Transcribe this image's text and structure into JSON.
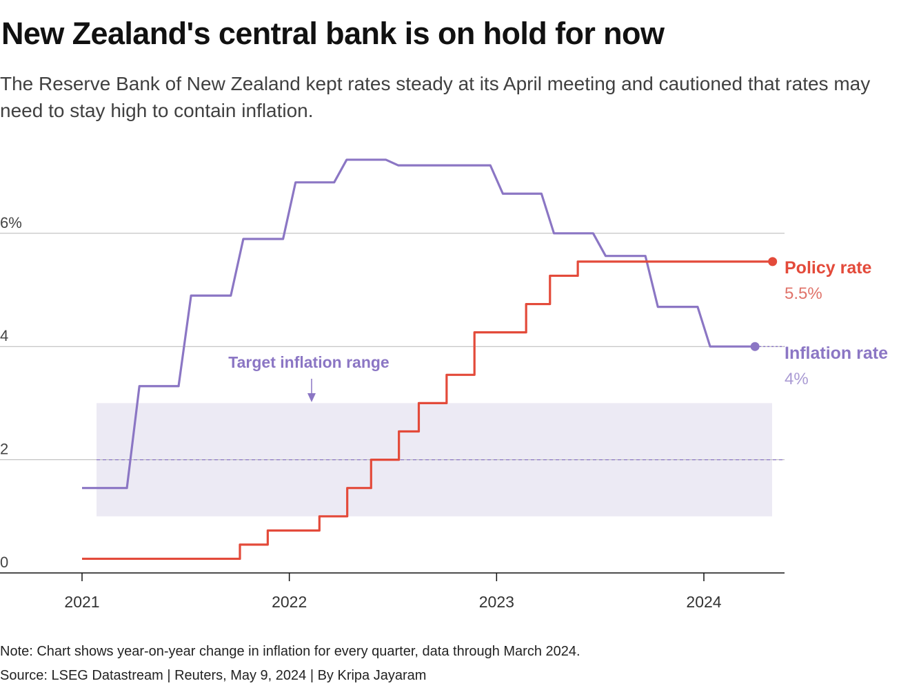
{
  "title": "New Zealand's central bank is on hold for now",
  "subtitle": "The Reserve Bank of New Zealand kept rates steady at its April meeting and cautioned that rates may need to stay high to contain inflation.",
  "note": "Note: Chart shows year-on-year change in inflation for every quarter, data through March 2024.",
  "source": "Source: LSEG Datastream | Reuters, May 9, 2024 | By Kripa Jayaram",
  "colors": {
    "policy": "#e34a3a",
    "inflation": "#8b76c4",
    "band": "#eceaf4",
    "grid": "#b5b5b5",
    "text": "#333333"
  },
  "chart_data": {
    "type": "line",
    "x_ticks": [
      "2021",
      "2022",
      "2023",
      "2024"
    ],
    "y_ticks": [
      {
        "value": 0,
        "label": "0"
      },
      {
        "value": 2,
        "label": "2"
      },
      {
        "value": 4,
        "label": "4"
      },
      {
        "value": 6,
        "label": "6%"
      }
    ],
    "ylim": [
      0,
      7.4
    ],
    "xlim": [
      "2020-09-01",
      "2024-06-15"
    ],
    "target_band": {
      "low": 1,
      "high": 3,
      "midpoint": 2,
      "label": "Target inflation range",
      "start": "2021-01-01",
      "end": "2024-05-01"
    },
    "series": [
      {
        "name": "Inflation rate",
        "value_label": "4%",
        "color": "#8b76c4",
        "end_marker": "2024-03-31",
        "steps": [
          [
            "2021-01-01",
            1.5
          ],
          [
            "2021-04-01",
            3.3
          ],
          [
            "2021-07-01",
            4.9
          ],
          [
            "2021-10-01",
            5.9
          ],
          [
            "2022-01-01",
            6.9
          ],
          [
            "2022-04-01",
            7.3
          ],
          [
            "2022-07-01",
            7.2
          ],
          [
            "2022-10-01",
            7.2
          ],
          [
            "2023-01-01",
            6.7
          ],
          [
            "2023-04-01",
            6.0
          ],
          [
            "2023-07-01",
            5.6
          ],
          [
            "2023-10-01",
            4.7
          ],
          [
            "2024-01-01",
            4.0
          ],
          [
            "2024-03-31",
            4.0
          ]
        ]
      },
      {
        "name": "Policy rate",
        "value_label": "5.5%",
        "color": "#e34a3a",
        "end_marker": "2024-05-01",
        "steps": [
          [
            "2021-01-01",
            0.25
          ],
          [
            "2021-10-06",
            0.5
          ],
          [
            "2021-11-24",
            0.75
          ],
          [
            "2022-02-23",
            1.0
          ],
          [
            "2022-04-13",
            1.5
          ],
          [
            "2022-05-25",
            2.0
          ],
          [
            "2022-07-13",
            2.5
          ],
          [
            "2022-08-17",
            3.0
          ],
          [
            "2022-10-05",
            3.5
          ],
          [
            "2022-11-23",
            4.25
          ],
          [
            "2023-02-22",
            4.75
          ],
          [
            "2023-04-05",
            5.25
          ],
          [
            "2023-05-24",
            5.5
          ],
          [
            "2024-05-01",
            5.5
          ]
        ]
      }
    ]
  }
}
